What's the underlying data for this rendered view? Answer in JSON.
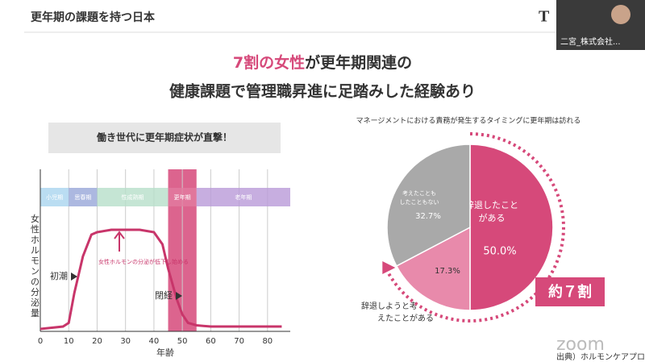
{
  "header": {
    "title": "更年期の課題を持つ日本",
    "logo": "T"
  },
  "participant": {
    "name": "二宮_株式会社..."
  },
  "headline": {
    "line1_highlight": "7割の女性",
    "line1_rest": "が更年期関連の",
    "line2": "健康課題で管理職昇進に足踏みした経験あり"
  },
  "watermark": "zoom",
  "source": "出典）ホルモンケアプロジェクト",
  "chart_data": [
    {
      "type": "line",
      "title": "働き世代に更年期症状が直撃！",
      "xlabel": "年齢",
      "ylabel": "女性ホルモンの分泌量",
      "x": [
        0,
        8,
        10,
        12,
        15,
        18,
        20,
        25,
        35,
        40,
        43,
        45,
        48,
        50,
        52,
        55,
        60,
        85
      ],
      "series": [
        {
          "name": "女性ホルモンの分泌量",
          "color": "#c8356a",
          "values": [
            0,
            2,
            5,
            30,
            60,
            78,
            80,
            82,
            82,
            80,
            70,
            50,
            25,
            12,
            5,
            3,
            2,
            2
          ]
        }
      ],
      "xlim": [
        0,
        88
      ],
      "xticks": [
        0,
        10,
        20,
        30,
        40,
        50,
        60,
        70,
        80
      ],
      "ylim": [
        0,
        100
      ],
      "grid": true,
      "phases": [
        {
          "label": "小児期",
          "start": 0,
          "end": 10,
          "color": "#a9d4ef"
        },
        {
          "label": "思春期",
          "start": 10,
          "end": 20,
          "color": "#97a6d8"
        },
        {
          "label": "性成熟期",
          "start": 20,
          "end": 45,
          "color": "#b7dfc9"
        },
        {
          "label": "更年期",
          "start": 45,
          "end": 55,
          "color": "#e27aa0"
        },
        {
          "label": "老年期",
          "start": 55,
          "end": 88,
          "color": "#b99ad8"
        }
      ],
      "highlight": {
        "start": 45,
        "end": 55,
        "color": "#d6497a"
      },
      "annotations": {
        "menarche": "初潮",
        "menopause": "閉経",
        "decline": "女性ホルモンの分泌が低下し始める"
      }
    },
    {
      "type": "pie",
      "title": "マネージメントにおける責務が発生するタイミングに更年期は訪れる",
      "categories": [
        "辞退したことがある",
        "辞退しようと考えたことがある",
        "考えたこともしたこともない"
      ],
      "values": [
        50.0,
        17.3,
        32.7
      ],
      "value_labels": [
        "50.0%",
        "17.3%",
        "32.7%"
      ],
      "colors": [
        "#d6497a",
        "#e88aab",
        "#a9a9a9"
      ],
      "annotation": "約７割"
    }
  ]
}
